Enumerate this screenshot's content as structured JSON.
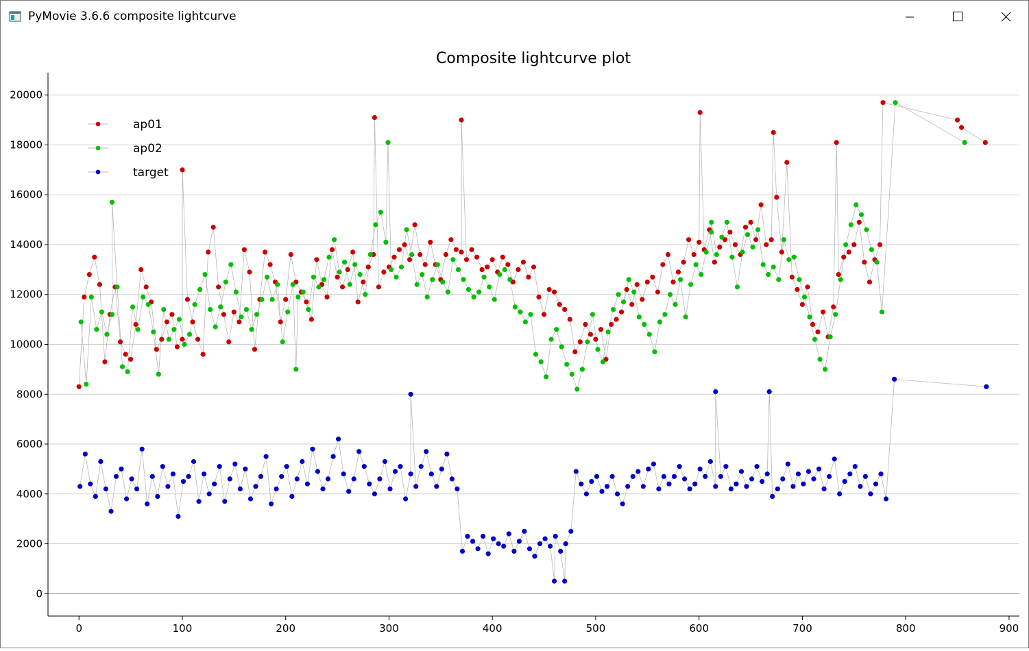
{
  "window": {
    "title": "PyMovie 3.6.6 composite lightcurve",
    "icon": "app-window-icon",
    "controls": [
      "minimize-icon",
      "maximize-icon",
      "close-icon"
    ]
  },
  "chart_data": {
    "type": "scatter",
    "title": "Composite lightcurve plot",
    "xlabel": "",
    "ylabel": "",
    "xlim": [
      -30,
      910
    ],
    "ylim": [
      -900,
      20900
    ],
    "x_ticks": [
      0,
      100,
      200,
      300,
      400,
      500,
      600,
      700,
      800,
      900
    ],
    "y_ticks": [
      0,
      2000,
      4000,
      6000,
      8000,
      10000,
      12000,
      14000,
      16000,
      18000,
      20000
    ],
    "grid": "horizontal",
    "legend_position": "top-left",
    "series": [
      {
        "name": "ap01",
        "color": "#cc0000",
        "x_start": 0,
        "x_step": 5,
        "values": [
          8300,
          11900,
          12800,
          13500,
          12400,
          9300,
          11200,
          12300,
          10100,
          9600,
          9400,
          10800,
          13000,
          12300,
          11700,
          9800,
          10200,
          10900,
          11200,
          9900,
          10200,
          11800,
          10900,
          10200,
          9600,
          13700,
          14700,
          12300,
          11200,
          10100,
          11300,
          10900,
          13800,
          12900,
          9800,
          11800,
          13700,
          13200,
          12500,
          10900,
          11800,
          13600,
          12500,
          12100,
          11700,
          11000,
          13400,
          12400,
          11900,
          13800,
          12700,
          12300,
          13000,
          13700,
          11700,
          12500,
          13100,
          13600,
          12300,
          12900,
          13100,
          13500,
          13800,
          14000,
          13400,
          14800,
          13600,
          13200,
          14100,
          13200,
          12600,
          13600,
          14200,
          13800,
          13700,
          13400,
          13800,
          13500,
          13000,
          13100,
          13400,
          12900,
          13500,
          13200,
          12500,
          13000,
          13300,
          12700,
          13100,
          11900,
          11200,
          12200,
          12100,
          11600,
          11400,
          11000,
          9700,
          10100,
          10800,
          10400,
          10200,
          10600,
          9400,
          10800,
          11000,
          11300,
          12200,
          11600,
          12400,
          11800,
          12500,
          12700,
          12100,
          13200,
          13600,
          12500,
          12900,
          13300,
          14200,
          13600,
          14100,
          13800,
          14600,
          13300,
          13900,
          14200,
          14500,
          14000,
          13600,
          14700,
          14900,
          14200,
          15600,
          14000,
          14200,
          15900,
          13700,
          17300,
          12700,
          12200,
          11600,
          12300,
          10800,
          10500,
          11300,
          10300,
          11500,
          12800,
          13500,
          13700,
          14000,
          14900,
          13300,
          12500,
          13400,
          14000
        ],
        "highlights": [
          [
            100,
            17000
          ],
          [
            286,
            19100
          ],
          [
            370,
            19000
          ],
          [
            601,
            19300
          ],
          [
            778,
            19700
          ],
          [
            850,
            19000
          ],
          [
            854,
            18700
          ],
          [
            672,
            18500
          ],
          [
            733,
            18100
          ],
          [
            877,
            18100
          ]
        ]
      },
      {
        "name": "ap02",
        "color": "#00c000",
        "x_start": 2,
        "x_step": 5,
        "values": [
          10900,
          8400,
          11900,
          10600,
          11300,
          10400,
          11200,
          12300,
          9100,
          8900,
          11500,
          10600,
          11900,
          11600,
          10500,
          8800,
          11400,
          10200,
          10600,
          11000,
          10000,
          10400,
          11600,
          12200,
          12800,
          11400,
          10700,
          11500,
          12500,
          13200,
          12100,
          11100,
          11400,
          10600,
          11200,
          11800,
          12700,
          11800,
          12400,
          10100,
          11300,
          12400,
          11900,
          12100,
          11400,
          12700,
          12300,
          12600,
          13500,
          14200,
          12900,
          13300,
          12400,
          13200,
          12800,
          12000,
          13600,
          14800,
          15300,
          14100,
          13000,
          12700,
          13100,
          14600,
          13600,
          12400,
          12800,
          11900,
          12600,
          13200,
          12500,
          12100,
          13400,
          13000,
          12600,
          12200,
          11900,
          12100,
          12700,
          12300,
          11800,
          12800,
          13000,
          12600,
          11500,
          11300,
          10900,
          11200,
          9600,
          9300,
          8700,
          10200,
          10600,
          9900,
          9200,
          8800,
          8200,
          9000,
          10100,
          11200,
          9800,
          9300,
          10500,
          11400,
          12000,
          11700,
          12600,
          12100,
          11100,
          10800,
          10400,
          9700,
          10900,
          11200,
          12000,
          11600,
          12600,
          11100,
          12400,
          13200,
          12800,
          13700,
          14500,
          13600,
          14300,
          14900,
          13500,
          12300,
          13700,
          14400,
          13900,
          14600,
          13200,
          12800,
          13100,
          12600,
          14200,
          13400,
          13500,
          12600,
          11900,
          11100,
          10200,
          9400,
          9000,
          10300,
          11200,
          12600,
          14000,
          14800,
          15600,
          15200,
          14600,
          13800,
          13300,
          11300
        ],
        "highlights": [
          [
            32,
            15700
          ],
          [
            210,
            9000
          ],
          [
            299,
            18100
          ],
          [
            612,
            14900
          ],
          [
            790,
            19700
          ],
          [
            857,
            18100
          ]
        ]
      },
      {
        "name": "target",
        "color": "#0000cc",
        "x_start": 1,
        "x_step": 5,
        "values": [
          4300,
          5600,
          4400,
          3900,
          5300,
          4200,
          3300,
          4700,
          5000,
          3800,
          4600,
          4200,
          5800,
          3600,
          4700,
          3900,
          5100,
          4300,
          4800,
          3100,
          4500,
          4700,
          5300,
          3700,
          4800,
          4000,
          4400,
          5100,
          3700,
          4600,
          5200,
          4200,
          5000,
          3800,
          4300,
          4700,
          5500,
          3600,
          4200,
          4700,
          5100,
          3900,
          4600,
          5300,
          4400,
          5800,
          4900,
          4200,
          4600,
          5500,
          6200,
          4800,
          4100,
          4600,
          5700,
          5100,
          4400,
          4000,
          4600,
          5300,
          4200,
          4900,
          5100,
          3800,
          4800,
          4300,
          5100,
          5700,
          4800,
          4300,
          5000,
          5600,
          4600,
          4200,
          1700,
          2300,
          2100,
          1800,
          2300,
          1600,
          2200,
          2000,
          1900,
          2400,
          1700,
          2100,
          2500,
          1800,
          1500,
          2000,
          2200,
          1900,
          2300,
          1700,
          2000,
          2500,
          4900,
          4400,
          4000,
          4500,
          4700,
          4100,
          4300,
          4700,
          4000,
          3600,
          4300,
          4700,
          4900,
          4300,
          5000,
          5200,
          4200,
          4700,
          4400,
          4700,
          5100,
          4600,
          4200,
          4400,
          5000,
          4700,
          5300,
          4300,
          4700,
          5100,
          4200,
          4400,
          4900,
          4300,
          4600,
          5100,
          4500,
          4800,
          3900,
          4200,
          4600,
          5200,
          4300,
          4800,
          4400,
          4900,
          4600,
          5000,
          4200,
          4700,
          5400,
          4000,
          4500,
          4800,
          5100,
          4300,
          4700,
          4000,
          4400,
          4800,
          3800
        ],
        "highlights": [
          [
            321,
            8000
          ],
          [
            616,
            8100
          ],
          [
            668,
            8100
          ],
          [
            789,
            8600
          ],
          [
            878,
            8300
          ],
          [
            460,
            500
          ],
          [
            470,
            500
          ]
        ]
      }
    ]
  }
}
